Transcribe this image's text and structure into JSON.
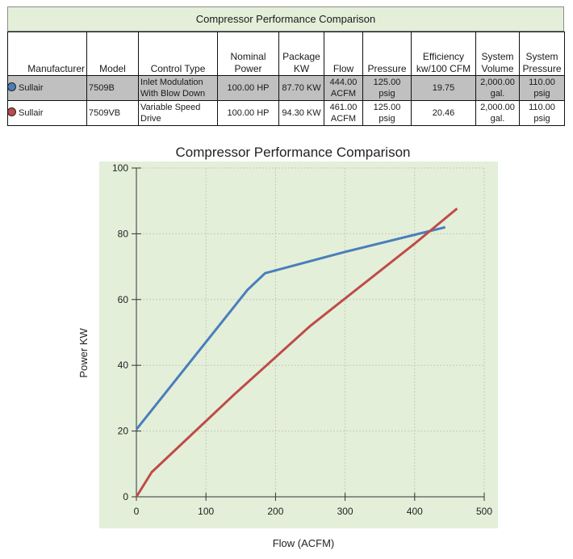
{
  "table": {
    "title": "Compressor Performance Comparison",
    "headers": {
      "manufacturer": "Manufacturer",
      "model": "Model",
      "control_type": "Control Type",
      "nominal_power": [
        "Nominal",
        "Power"
      ],
      "package_kw": [
        "Package",
        "KW"
      ],
      "flow": "Flow",
      "pressure": "Pressure",
      "efficiency": [
        "Efficiency",
        "kw/100 CFM"
      ],
      "system_volume": [
        "System",
        "Volume"
      ],
      "system_pressure": [
        "System",
        "Pressure"
      ]
    },
    "rows": [
      {
        "color": "#4a7ebb",
        "manufacturer": "Sullair",
        "model": "7509B",
        "control_type": [
          "Inlet Modulation",
          "With Blow Down"
        ],
        "nominal_power": "100.00 HP",
        "package_kw": "87.70 KW",
        "flow": [
          "444.00",
          "ACFM"
        ],
        "pressure": [
          "125.00",
          "psig"
        ],
        "efficiency": "19.75",
        "system_volume": [
          "2,000.00",
          "gal."
        ],
        "system_pressure": [
          "110.00",
          "psig"
        ]
      },
      {
        "color": "#be4b48",
        "manufacturer": "Sullair",
        "model": "7509VB",
        "control_type": [
          "Variable Speed",
          "Drive"
        ],
        "nominal_power": "100.00 HP",
        "package_kw": "94.30 KW",
        "flow": [
          "461.00",
          "ACFM"
        ],
        "pressure": [
          "125.00",
          "psig"
        ],
        "efficiency": "20.46",
        "system_volume": [
          "2,000.00",
          "gal."
        ],
        "system_pressure": [
          "110.00",
          "psig"
        ]
      }
    ]
  },
  "chart_data": {
    "type": "line",
    "title": "Compressor Performance Comparison",
    "xlabel": "Flow (ACFM)",
    "ylabel": "Power KW",
    "xlim": [
      0,
      500
    ],
    "ylim": [
      0,
      100
    ],
    "xticks": [
      0,
      100,
      200,
      300,
      400,
      500
    ],
    "yticks": [
      0,
      20,
      40,
      60,
      80,
      100
    ],
    "grid": true,
    "plot_background": "#e3efd9",
    "series": [
      {
        "color": "#4a7ebb",
        "x": [
          0,
          160,
          185,
          300,
          444
        ],
        "y": [
          20.5,
          63,
          68,
          74.5,
          82
        ]
      },
      {
        "color": "#be4b48",
        "x": [
          0,
          22,
          140,
          250,
          400,
          461
        ],
        "y": [
          0,
          7.5,
          31,
          52,
          77,
          87.7
        ]
      }
    ]
  }
}
